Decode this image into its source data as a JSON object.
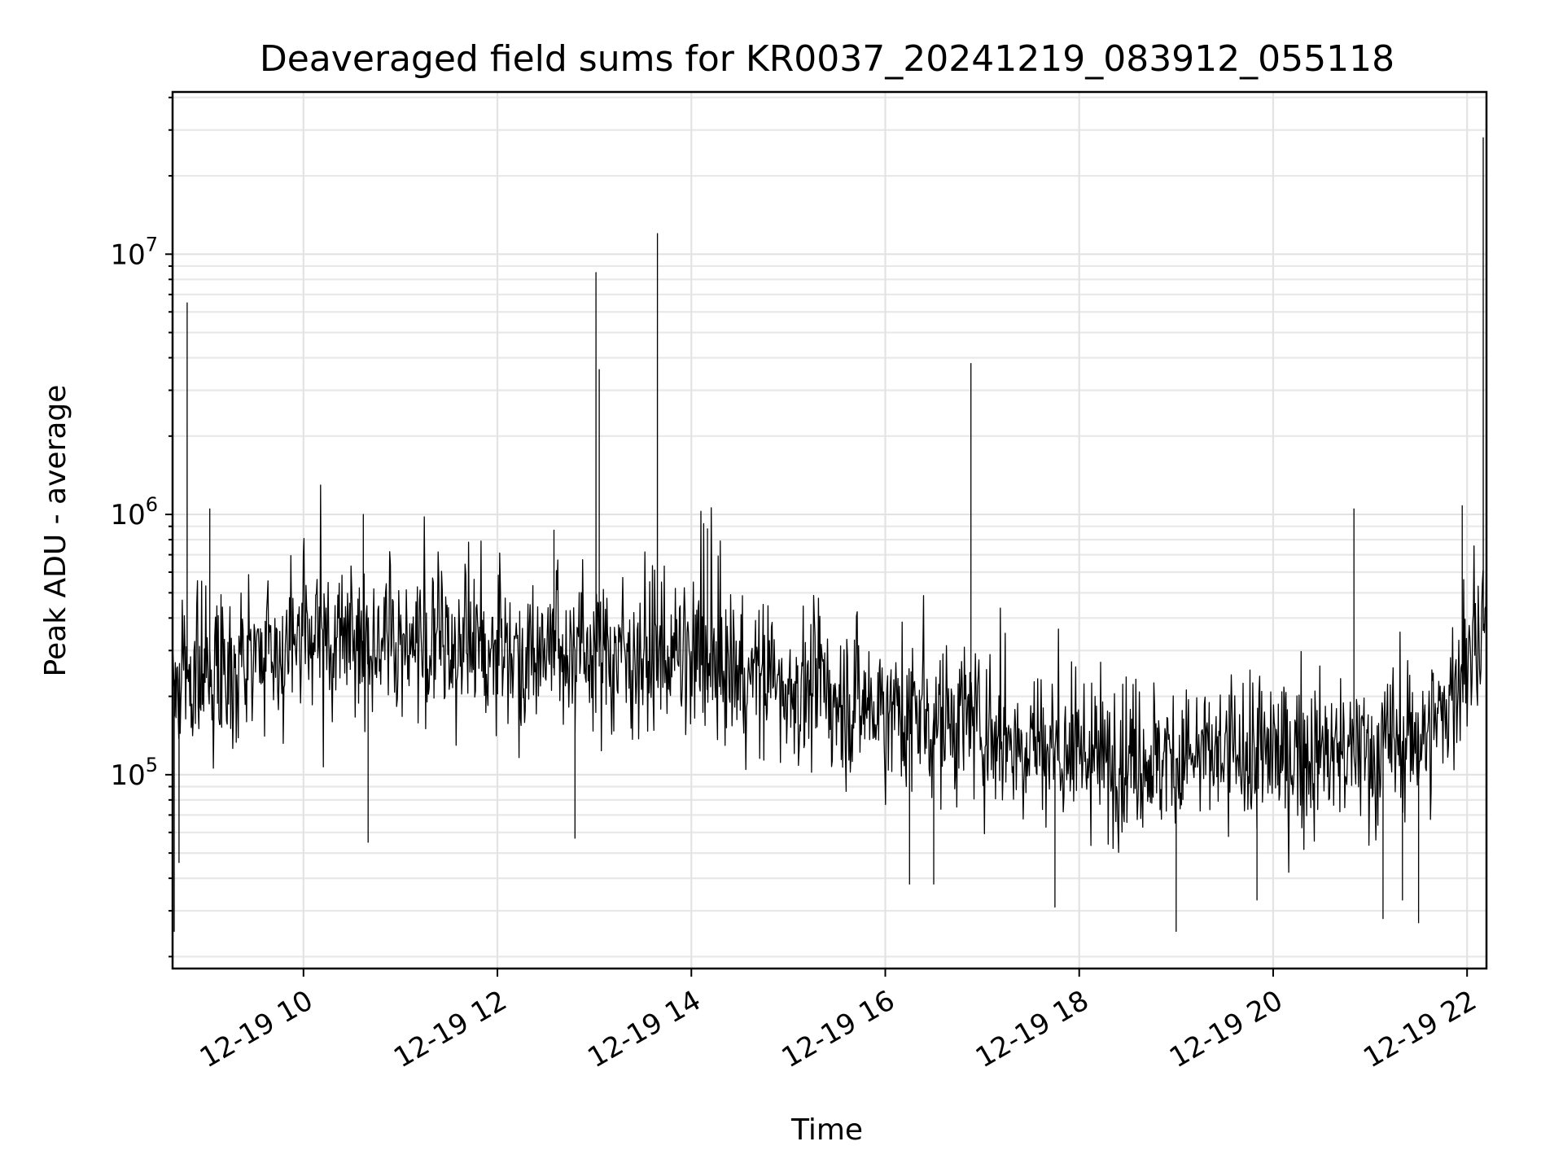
{
  "chart_data": {
    "type": "line",
    "title": "Deaveraged field sums for KR0037_20241219_083912_055118",
    "xlabel": "Time",
    "ylabel": "Peak ADU - average",
    "yscale": "log",
    "ylim": [
      18000,
      42000000
    ],
    "xlim": [
      "2024-12-19 08:39",
      "2024-12-19 22:12"
    ],
    "xticks": [
      {
        "value": "2024-12-19 10:00",
        "label": "12-19 10"
      },
      {
        "value": "2024-12-19 12:00",
        "label": "12-19 12"
      },
      {
        "value": "2024-12-19 14:00",
        "label": "12-19 14"
      },
      {
        "value": "2024-12-19 16:00",
        "label": "12-19 16"
      },
      {
        "value": "2024-12-19 18:00",
        "label": "12-19 18"
      },
      {
        "value": "2024-12-19 20:00",
        "label": "12-19 20"
      },
      {
        "value": "2024-12-19 22:00",
        "label": "12-19 22"
      }
    ],
    "yticks": [
      {
        "value": 100000,
        "base": "10",
        "exp": "5"
      },
      {
        "value": 1000000,
        "base": "10",
        "exp": "6"
      },
      {
        "value": 10000000,
        "base": "10",
        "exp": "7"
      }
    ],
    "grid": true,
    "line_color": "#000000",
    "baseline": [
      {
        "t": "2024-12-19 08:39",
        "y": 230000
      },
      {
        "t": "2024-12-19 09:00",
        "y": 250000
      },
      {
        "t": "2024-12-19 10:00",
        "y": 320000
      },
      {
        "t": "2024-12-19 11:00",
        "y": 330000
      },
      {
        "t": "2024-12-19 12:00",
        "y": 310000
      },
      {
        "t": "2024-12-19 13:00",
        "y": 300000
      },
      {
        "t": "2024-12-19 14:00",
        "y": 280000
      },
      {
        "t": "2024-12-19 15:00",
        "y": 220000
      },
      {
        "t": "2024-12-19 16:00",
        "y": 180000
      },
      {
        "t": "2024-12-19 17:00",
        "y": 150000
      },
      {
        "t": "2024-12-19 18:00",
        "y": 120000
      },
      {
        "t": "2024-12-19 19:00",
        "y": 115000
      },
      {
        "t": "2024-12-19 20:00",
        "y": 120000
      },
      {
        "t": "2024-12-19 21:00",
        "y": 120000
      },
      {
        "t": "2024-12-19 21:40",
        "y": 150000
      },
      {
        "t": "2024-12-19 22:12",
        "y": 380000
      }
    ],
    "peaks": [
      {
        "t": "2024-12-19 08:48",
        "y": 6500000
      },
      {
        "t": "2024-12-19 13:01",
        "y": 8500000
      },
      {
        "t": "2024-12-19 13:03",
        "y": 3600000
      },
      {
        "t": "2024-12-19 13:39",
        "y": 12000000
      },
      {
        "t": "2024-12-19 16:53",
        "y": 3800000
      },
      {
        "t": "2024-12-19 22:10",
        "y": 28000000
      },
      {
        "t": "2024-12-19 09:02",
        "y": 1050000
      },
      {
        "t": "2024-12-19 10:37",
        "y": 1000000
      },
      {
        "t": "2024-12-19 20:50",
        "y": 1050000
      },
      {
        "t": "2024-12-19 21:57",
        "y": 1080000
      },
      {
        "t": "2024-12-19 12:35",
        "y": 870000
      },
      {
        "t": "2024-12-19 14:10",
        "y": 880000
      }
    ],
    "dips": [
      {
        "t": "2024-12-19 08:40",
        "y": 25000
      },
      {
        "t": "2024-12-19 08:43",
        "y": 46000
      },
      {
        "t": "2024-12-19 10:40",
        "y": 55000
      },
      {
        "t": "2024-12-19 12:48",
        "y": 57000
      },
      {
        "t": "2024-12-19 16:15",
        "y": 38000
      },
      {
        "t": "2024-12-19 16:30",
        "y": 38000
      },
      {
        "t": "2024-12-19 17:45",
        "y": 31000
      },
      {
        "t": "2024-12-19 19:00",
        "y": 25000
      },
      {
        "t": "2024-12-19 19:50",
        "y": 33000
      },
      {
        "t": "2024-12-19 21:08",
        "y": 28000
      },
      {
        "t": "2024-12-19 21:20",
        "y": 33000
      },
      {
        "t": "2024-12-19 21:30",
        "y": 27000
      }
    ]
  }
}
